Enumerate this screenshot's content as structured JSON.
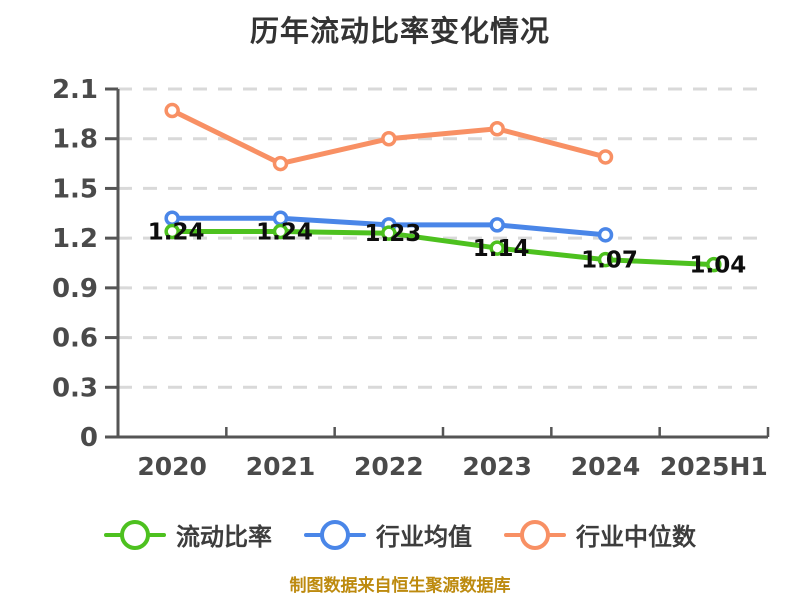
{
  "page": {
    "background": "#ffffff",
    "footer": "制图数据来自恒生聚源数据库"
  },
  "chart_data": {
    "type": "line",
    "title": "历年流动比率变化情况",
    "categories": [
      "2020",
      "2021",
      "2022",
      "2023",
      "2024",
      "2025H1"
    ],
    "series": [
      {
        "name": "流动比率",
        "slug": "current-ratio",
        "color": "#4dc11f",
        "values": [
          1.24,
          1.24,
          1.23,
          1.14,
          1.07,
          1.04
        ],
        "point_labels": [
          "1.24",
          "1.24",
          "1.23",
          "1.14",
          "1.07",
          "1.04"
        ],
        "show_point_labels": true
      },
      {
        "name": "行业均值",
        "slug": "industry-average",
        "color": "#4a86e8",
        "values": [
          1.32,
          1.32,
          1.28,
          1.28,
          1.22,
          null
        ],
        "point_labels": [],
        "show_point_labels": false
      },
      {
        "name": "行业中位数",
        "slug": "industry-median",
        "color": "#f89064",
        "values": [
          1.97,
          1.65,
          1.8,
          1.86,
          1.69,
          null
        ],
        "point_labels": [],
        "show_point_labels": false
      }
    ],
    "ylim": [
      0,
      2.1
    ],
    "yticks": [
      0,
      0.3,
      0.6,
      0.9,
      1.2,
      1.5,
      1.8,
      2.1
    ],
    "ytick_labels": [
      "0",
      "0.3",
      "0.6",
      "0.9",
      "1.2",
      "1.5",
      "1.8",
      "2.1"
    ],
    "grid": "horizontal dashed",
    "legend_position": "bottom",
    "style": {
      "axis_color": "#555555",
      "grid_color": "#d9d9d9",
      "tick_label_color": "#4a4a4a",
      "data_label_color": "#0d0d0d",
      "title_color": "#333333",
      "legend_label_color": "#3d3d3d",
      "footer_color": "#bd8a0e",
      "marker_fill": "#ffffff"
    }
  }
}
